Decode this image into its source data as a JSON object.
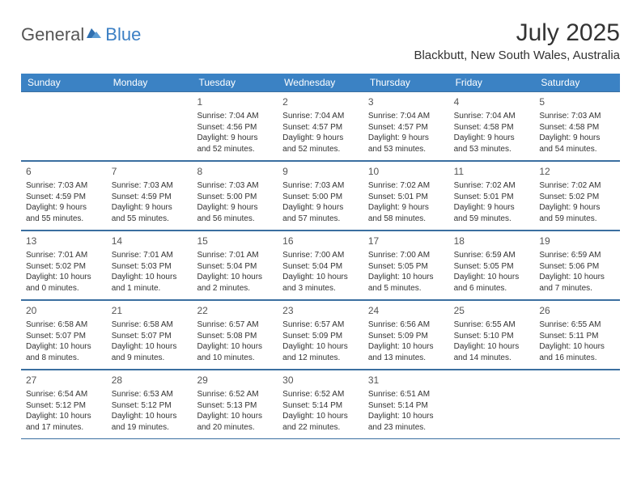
{
  "logo": {
    "text_general": "General",
    "text_blue": "Blue",
    "icon_color": "#2f6fb0"
  },
  "title": {
    "month_year": "July 2025",
    "location": "Blackbutt, New South Wales, Australia"
  },
  "colors": {
    "header_bg": "#3b82c4",
    "header_text": "#ffffff",
    "row_border": "#3b6fa0",
    "text": "#333333",
    "day_number": "#555555"
  },
  "day_headers": [
    "Sunday",
    "Monday",
    "Tuesday",
    "Wednesday",
    "Thursday",
    "Friday",
    "Saturday"
  ],
  "weeks": [
    [
      null,
      null,
      {
        "n": "1",
        "sunrise": "Sunrise: 7:04 AM",
        "sunset": "Sunset: 4:56 PM",
        "daylight": "Daylight: 9 hours and 52 minutes."
      },
      {
        "n": "2",
        "sunrise": "Sunrise: 7:04 AM",
        "sunset": "Sunset: 4:57 PM",
        "daylight": "Daylight: 9 hours and 52 minutes."
      },
      {
        "n": "3",
        "sunrise": "Sunrise: 7:04 AM",
        "sunset": "Sunset: 4:57 PM",
        "daylight": "Daylight: 9 hours and 53 minutes."
      },
      {
        "n": "4",
        "sunrise": "Sunrise: 7:04 AM",
        "sunset": "Sunset: 4:58 PM",
        "daylight": "Daylight: 9 hours and 53 minutes."
      },
      {
        "n": "5",
        "sunrise": "Sunrise: 7:03 AM",
        "sunset": "Sunset: 4:58 PM",
        "daylight": "Daylight: 9 hours and 54 minutes."
      }
    ],
    [
      {
        "n": "6",
        "sunrise": "Sunrise: 7:03 AM",
        "sunset": "Sunset: 4:59 PM",
        "daylight": "Daylight: 9 hours and 55 minutes."
      },
      {
        "n": "7",
        "sunrise": "Sunrise: 7:03 AM",
        "sunset": "Sunset: 4:59 PM",
        "daylight": "Daylight: 9 hours and 55 minutes."
      },
      {
        "n": "8",
        "sunrise": "Sunrise: 7:03 AM",
        "sunset": "Sunset: 5:00 PM",
        "daylight": "Daylight: 9 hours and 56 minutes."
      },
      {
        "n": "9",
        "sunrise": "Sunrise: 7:03 AM",
        "sunset": "Sunset: 5:00 PM",
        "daylight": "Daylight: 9 hours and 57 minutes."
      },
      {
        "n": "10",
        "sunrise": "Sunrise: 7:02 AM",
        "sunset": "Sunset: 5:01 PM",
        "daylight": "Daylight: 9 hours and 58 minutes."
      },
      {
        "n": "11",
        "sunrise": "Sunrise: 7:02 AM",
        "sunset": "Sunset: 5:01 PM",
        "daylight": "Daylight: 9 hours and 59 minutes."
      },
      {
        "n": "12",
        "sunrise": "Sunrise: 7:02 AM",
        "sunset": "Sunset: 5:02 PM",
        "daylight": "Daylight: 9 hours and 59 minutes."
      }
    ],
    [
      {
        "n": "13",
        "sunrise": "Sunrise: 7:01 AM",
        "sunset": "Sunset: 5:02 PM",
        "daylight": "Daylight: 10 hours and 0 minutes."
      },
      {
        "n": "14",
        "sunrise": "Sunrise: 7:01 AM",
        "sunset": "Sunset: 5:03 PM",
        "daylight": "Daylight: 10 hours and 1 minute."
      },
      {
        "n": "15",
        "sunrise": "Sunrise: 7:01 AM",
        "sunset": "Sunset: 5:04 PM",
        "daylight": "Daylight: 10 hours and 2 minutes."
      },
      {
        "n": "16",
        "sunrise": "Sunrise: 7:00 AM",
        "sunset": "Sunset: 5:04 PM",
        "daylight": "Daylight: 10 hours and 3 minutes."
      },
      {
        "n": "17",
        "sunrise": "Sunrise: 7:00 AM",
        "sunset": "Sunset: 5:05 PM",
        "daylight": "Daylight: 10 hours and 5 minutes."
      },
      {
        "n": "18",
        "sunrise": "Sunrise: 6:59 AM",
        "sunset": "Sunset: 5:05 PM",
        "daylight": "Daylight: 10 hours and 6 minutes."
      },
      {
        "n": "19",
        "sunrise": "Sunrise: 6:59 AM",
        "sunset": "Sunset: 5:06 PM",
        "daylight": "Daylight: 10 hours and 7 minutes."
      }
    ],
    [
      {
        "n": "20",
        "sunrise": "Sunrise: 6:58 AM",
        "sunset": "Sunset: 5:07 PM",
        "daylight": "Daylight: 10 hours and 8 minutes."
      },
      {
        "n": "21",
        "sunrise": "Sunrise: 6:58 AM",
        "sunset": "Sunset: 5:07 PM",
        "daylight": "Daylight: 10 hours and 9 minutes."
      },
      {
        "n": "22",
        "sunrise": "Sunrise: 6:57 AM",
        "sunset": "Sunset: 5:08 PM",
        "daylight": "Daylight: 10 hours and 10 minutes."
      },
      {
        "n": "23",
        "sunrise": "Sunrise: 6:57 AM",
        "sunset": "Sunset: 5:09 PM",
        "daylight": "Daylight: 10 hours and 12 minutes."
      },
      {
        "n": "24",
        "sunrise": "Sunrise: 6:56 AM",
        "sunset": "Sunset: 5:09 PM",
        "daylight": "Daylight: 10 hours and 13 minutes."
      },
      {
        "n": "25",
        "sunrise": "Sunrise: 6:55 AM",
        "sunset": "Sunset: 5:10 PM",
        "daylight": "Daylight: 10 hours and 14 minutes."
      },
      {
        "n": "26",
        "sunrise": "Sunrise: 6:55 AM",
        "sunset": "Sunset: 5:11 PM",
        "daylight": "Daylight: 10 hours and 16 minutes."
      }
    ],
    [
      {
        "n": "27",
        "sunrise": "Sunrise: 6:54 AM",
        "sunset": "Sunset: 5:12 PM",
        "daylight": "Daylight: 10 hours and 17 minutes."
      },
      {
        "n": "28",
        "sunrise": "Sunrise: 6:53 AM",
        "sunset": "Sunset: 5:12 PM",
        "daylight": "Daylight: 10 hours and 19 minutes."
      },
      {
        "n": "29",
        "sunrise": "Sunrise: 6:52 AM",
        "sunset": "Sunset: 5:13 PM",
        "daylight": "Daylight: 10 hours and 20 minutes."
      },
      {
        "n": "30",
        "sunrise": "Sunrise: 6:52 AM",
        "sunset": "Sunset: 5:14 PM",
        "daylight": "Daylight: 10 hours and 22 minutes."
      },
      {
        "n": "31",
        "sunrise": "Sunrise: 6:51 AM",
        "sunset": "Sunset: 5:14 PM",
        "daylight": "Daylight: 10 hours and 23 minutes."
      },
      null,
      null
    ]
  ]
}
